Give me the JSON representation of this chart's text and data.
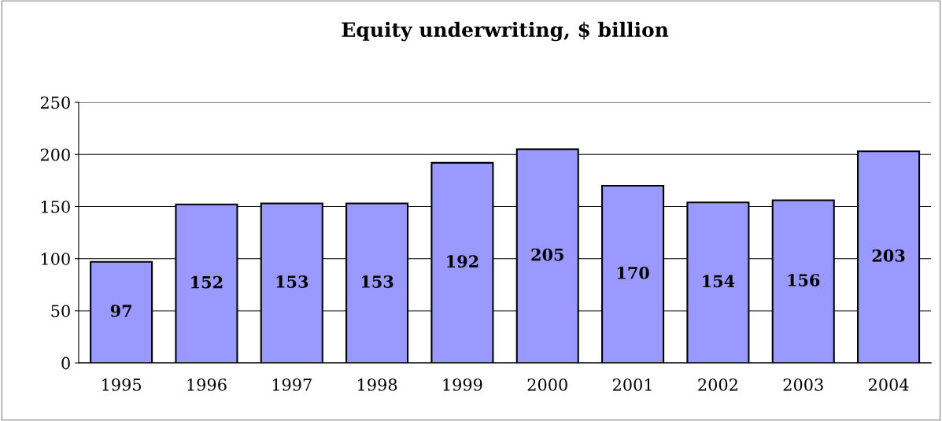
{
  "chart_data": {
    "type": "bar",
    "title": "Equity underwriting, $ billion",
    "categories": [
      "1995",
      "1996",
      "1997",
      "1998",
      "1999",
      "2000",
      "2001",
      "2002",
      "2003",
      "2004"
    ],
    "values": [
      97,
      152,
      153,
      153,
      192,
      205,
      170,
      154,
      156,
      203
    ],
    "color": "#9999ff",
    "ylim": [
      0,
      250
    ],
    "yticks": [
      0,
      50,
      100,
      150,
      200,
      250
    ],
    "grid": "y",
    "data_labels": true,
    "legend": false
  }
}
